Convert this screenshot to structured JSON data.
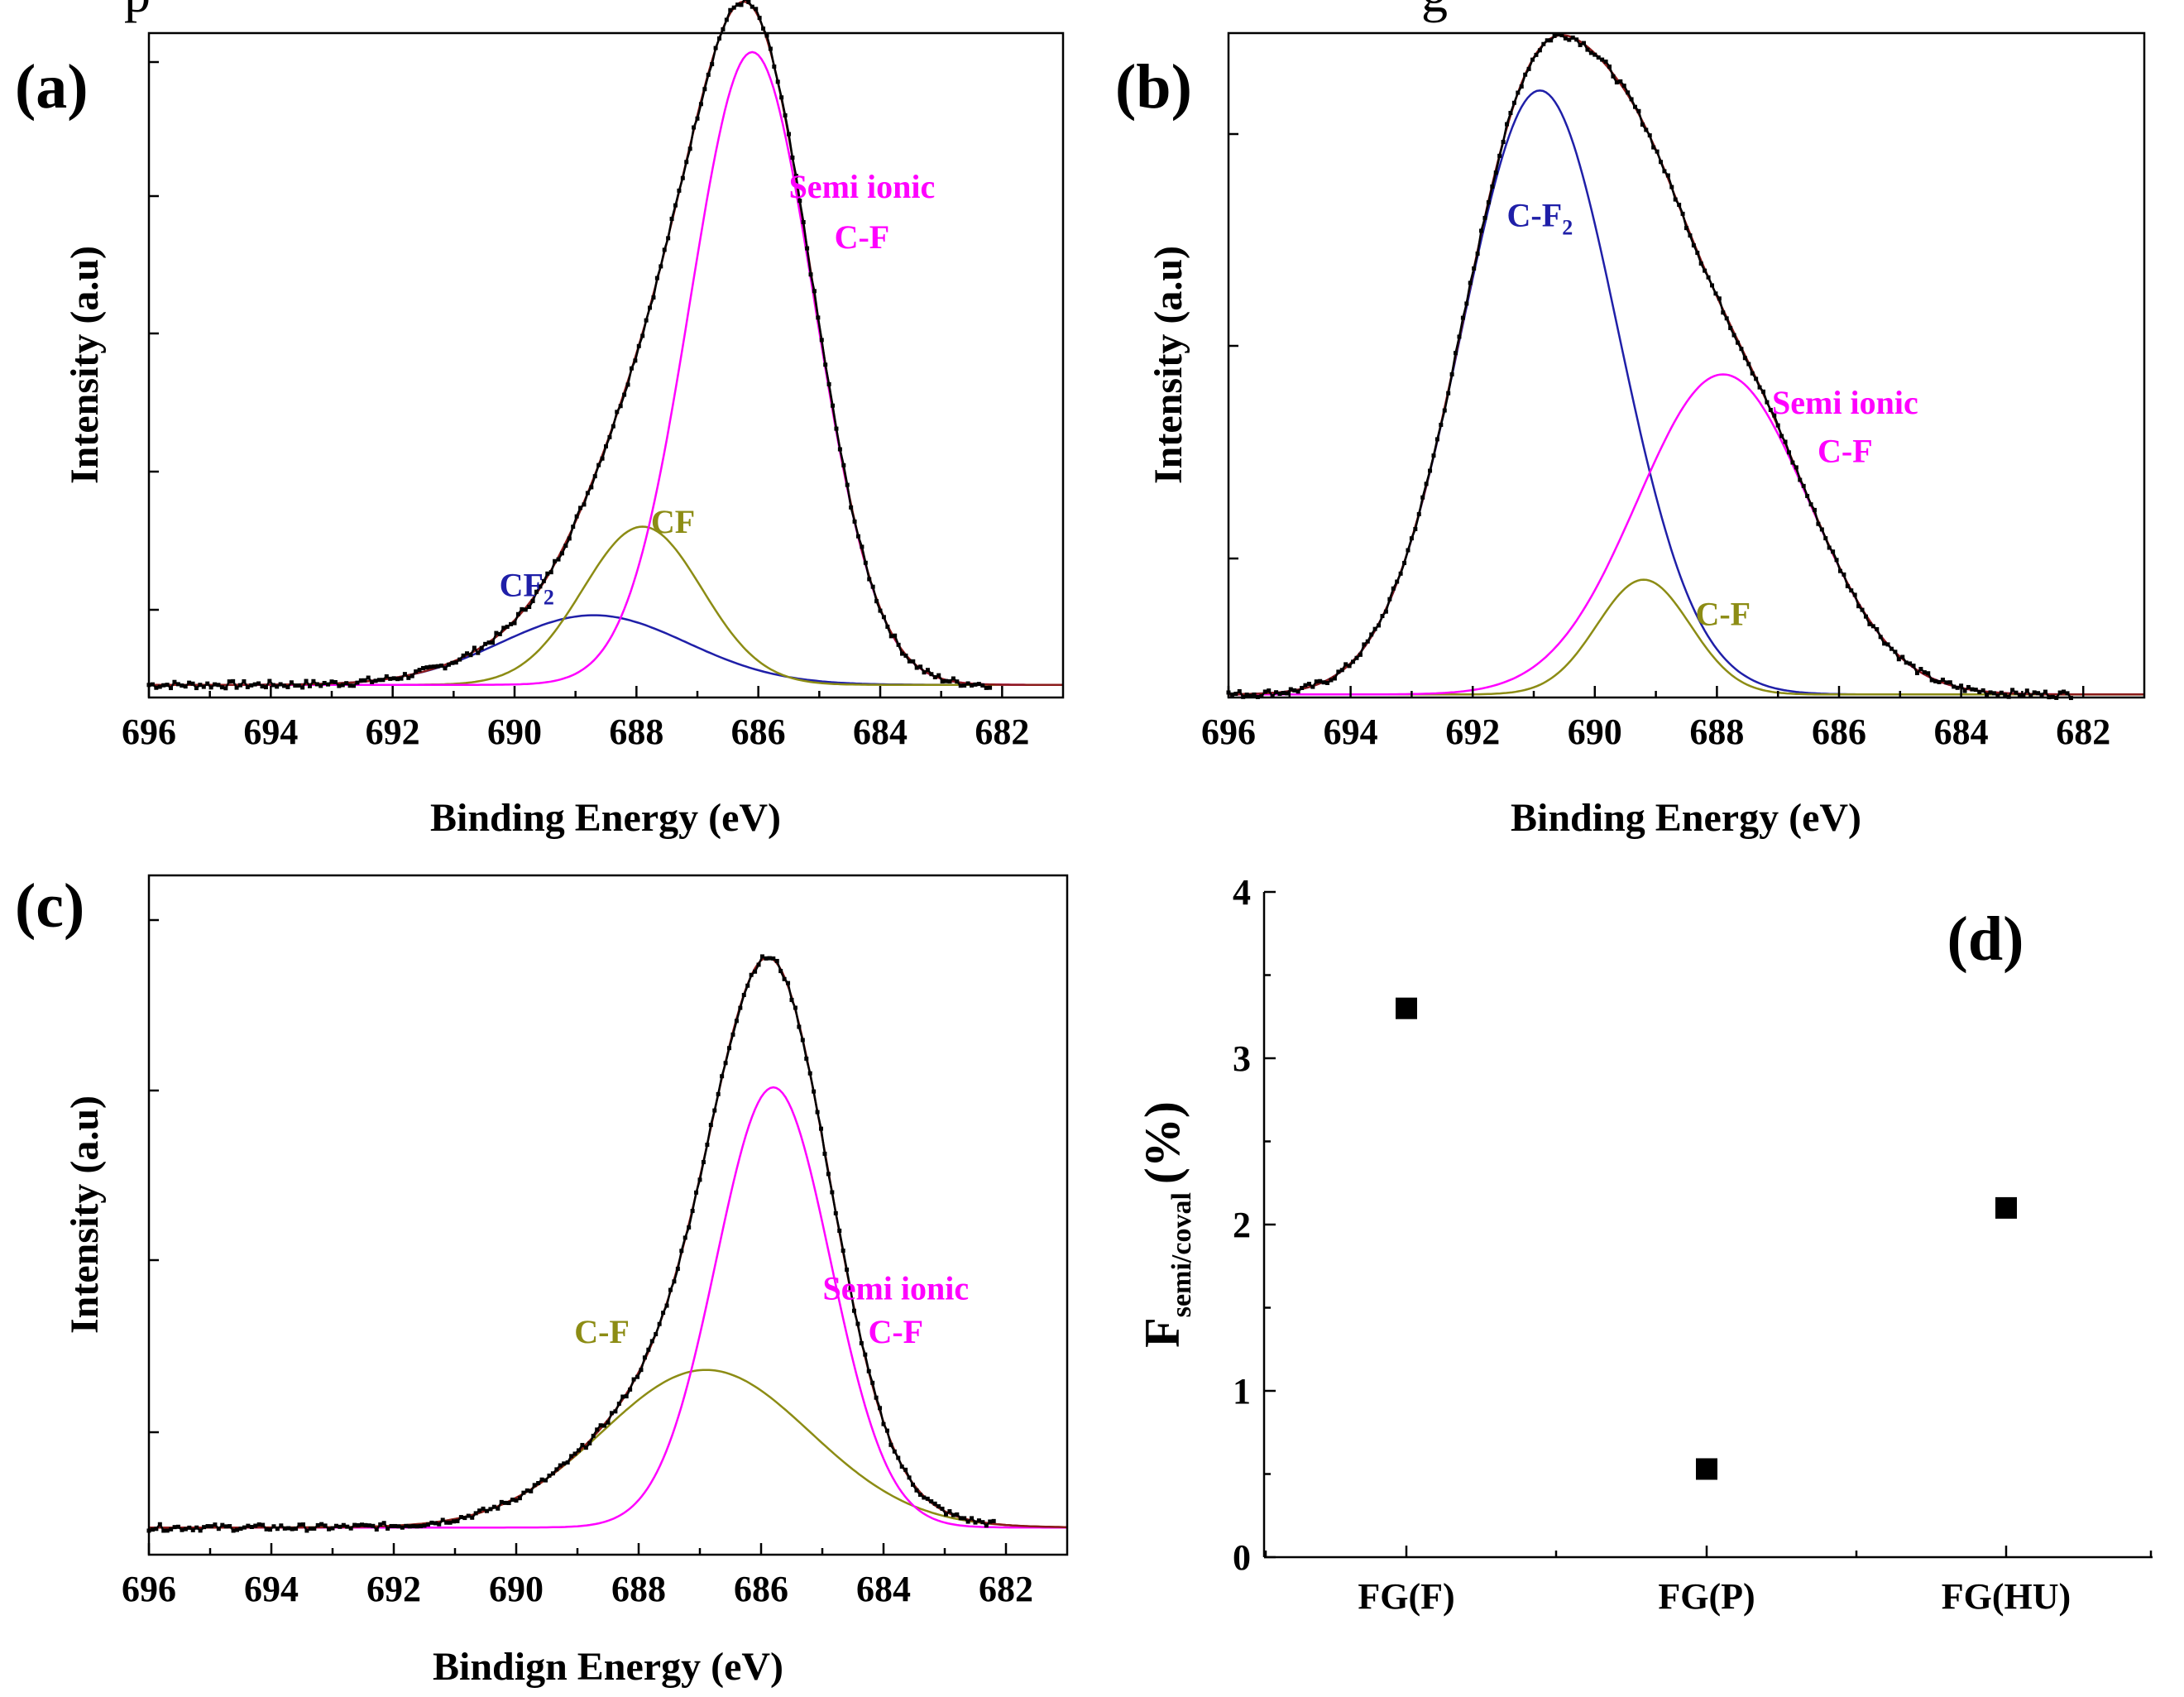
{
  "header_fragment": "p                                                                                                g",
  "colors": {
    "data": "#000000",
    "envelope": "#8b1a1a",
    "cf2": "#1f1fa8",
    "cf": "#8c8c14",
    "semi_ionic": "#ff00ff"
  },
  "chart_data": [
    {
      "panel": "a",
      "type": "line",
      "label": "(a)",
      "xlabel": "Binding Energy (eV)",
      "ylabel": "Intensity (a.u)",
      "xlim": [
        696,
        681
      ],
      "ylim": [
        0,
        1.05
      ],
      "x_ticks": [
        "696",
        "694",
        "692",
        "690",
        "688",
        "686",
        "684",
        "682"
      ],
      "baseline": 0.02,
      "peaks": [
        {
          "name": "CF2",
          "center": 688.7,
          "fwhm": 3.6,
          "height": 0.11,
          "color": "#1f1fa8"
        },
        {
          "name": "CF",
          "center": 687.9,
          "fwhm": 2.3,
          "height": 0.25,
          "color": "#8c8c14"
        },
        {
          "name": "Semi ionic C-F",
          "center": 686.1,
          "fwhm": 2.4,
          "height": 1.0,
          "color": "#ff00ff"
        }
      ],
      "annotations": [
        {
          "lines": [
            "Semi ionic",
            "C-F"
          ],
          "x": 684.3,
          "y": [
            0.79,
            0.71
          ],
          "color": "#ff00ff"
        },
        {
          "lines": [
            "CF"
          ],
          "x": 687.4,
          "y": [
            0.26
          ],
          "color": "#8c8c14"
        },
        {
          "lines": [
            "CF",
            "2"
          ],
          "x": 689.8,
          "y": [
            0.16
          ],
          "color": "#1f1fa8"
        }
      ]
    },
    {
      "panel": "b",
      "type": "line",
      "label": "(b)",
      "xlabel": "Binding Energy (eV)",
      "ylabel": "Intensity (a.u)",
      "xlim": [
        696,
        681
      ],
      "ylim": [
        0,
        1.1
      ],
      "x_ticks": [
        "696",
        "694",
        "692",
        "690",
        "688",
        "686",
        "684",
        "682"
      ],
      "baseline": 0.005,
      "peaks": [
        {
          "name": "C-F2",
          "center": 690.9,
          "fwhm": 3.0,
          "height": 1.0,
          "color": "#1f1fa8"
        },
        {
          "name": "C-F",
          "center": 689.2,
          "fwhm": 1.8,
          "height": 0.19,
          "color": "#8c8c14"
        },
        {
          "name": "Semi ionic C-F",
          "center": 687.9,
          "fwhm": 3.3,
          "height": 0.53,
          "color": "#ff00ff"
        }
      ],
      "annotations": [
        {
          "lines": [
            "C-F",
            "2"
          ],
          "x": 690.9,
          "y": [
            0.78
          ],
          "color": "#1f1fa8"
        },
        {
          "lines": [
            "Semi ionic",
            "C-F"
          ],
          "x": 685.9,
          "y": [
            0.47,
            0.39
          ],
          "color": "#ff00ff"
        },
        {
          "lines": [
            "C-F"
          ],
          "x": 687.9,
          "y": [
            0.12
          ],
          "color": "#8c8c14"
        }
      ]
    },
    {
      "panel": "c",
      "type": "line",
      "label": "(c)",
      "xlabel": "Bindign Energy (eV)",
      "ylabel": "Intensity (a.u)",
      "xlim": [
        696,
        681
      ],
      "ylim": [
        -0.05,
        1.2
      ],
      "x_ticks": [
        "696",
        "694",
        "692",
        "690",
        "688",
        "686",
        "684",
        "682"
      ],
      "baseline": 0.0,
      "peaks": [
        {
          "name": "C-F",
          "center": 686.9,
          "fwhm": 4.0,
          "height": 0.29,
          "color": "#8c8c14"
        },
        {
          "name": "Semi ionic C-F",
          "center": 685.8,
          "fwhm": 2.2,
          "height": 0.81,
          "color": "#ff00ff"
        }
      ],
      "annotations": [
        {
          "lines": [
            "C-F"
          ],
          "x": 688.6,
          "y": [
            0.34
          ],
          "color": "#8c8c14"
        },
        {
          "lines": [
            "Semi ionic",
            "C-F"
          ],
          "x": 683.8,
          "y": [
            0.42,
            0.34
          ],
          "color": "#ff00ff"
        }
      ]
    },
    {
      "panel": "d",
      "type": "scatter",
      "label": "(d)",
      "ylabel_main": "F",
      "ylabel_sub": "semi/coval",
      "ylabel_unit": "(%)",
      "categories": [
        "FG(F)",
        "FG(P)",
        "FG(HU)"
      ],
      "values": [
        3.3,
        0.53,
        2.1
      ],
      "ylim": [
        0,
        4
      ],
      "y_ticks": [
        "0",
        "1",
        "2",
        "3",
        "4"
      ]
    }
  ]
}
